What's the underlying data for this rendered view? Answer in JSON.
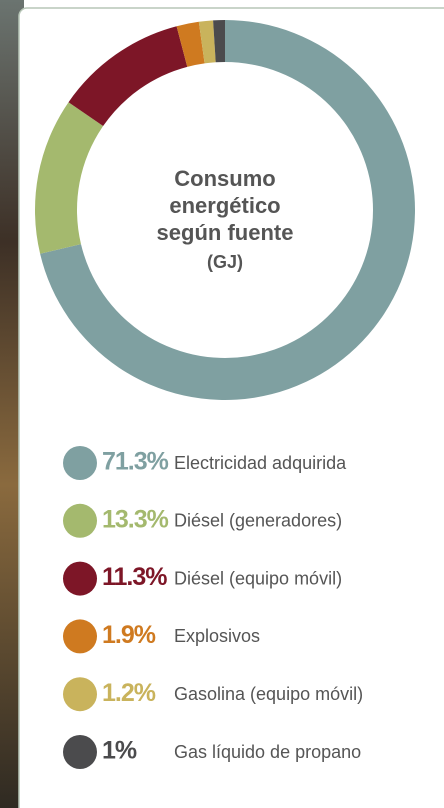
{
  "chart_data": {
    "type": "donut",
    "title": "Consumo energético según fuente",
    "subtitle": "(GJ)",
    "categories": [
      "Electricidad adquirida",
      "Diésel (generadores)",
      "Diésel (equipo móvil)",
      "Explosivos",
      "Gasolina (equipo móvil)",
      "Gas líquido de propano"
    ],
    "values": [
      71.3,
      13.3,
      11.3,
      1.9,
      1.2,
      1
    ],
    "value_labels": [
      "71.3%",
      "13.3%",
      "11.3%",
      "1.9%",
      "1.2%",
      "1%"
    ],
    "colors": [
      "#7fa0a1",
      "#a4b96e",
      "#7d1627",
      "#cf7a20",
      "#c9b35c",
      "#4b4b4d"
    ]
  }
}
